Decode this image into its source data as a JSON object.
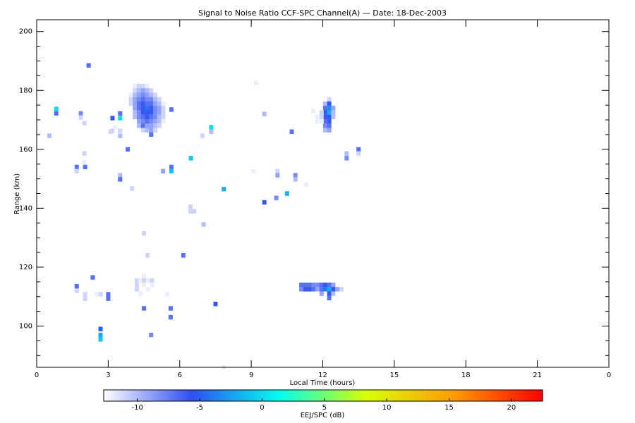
{
  "chart_data": {
    "type": "heatmap",
    "title": "Signal to Noise Ratio CCF-SPC Channel(A) — Date: 18-Dec-2003",
    "x_label": "Local Time (hours)",
    "y_label": "Range (km)",
    "xlim": [
      0,
      24
    ],
    "ylim": [
      86,
      204
    ],
    "xticks": [
      0,
      3,
      6,
      9,
      12,
      15,
      18,
      21,
      {
        "value": 24,
        "label": "0"
      }
    ],
    "yticks": [
      100,
      120,
      140,
      160,
      180,
      200
    ],
    "yminorticks": [
      90,
      95,
      105,
      110,
      115,
      125,
      130,
      135,
      145,
      150,
      155,
      165,
      170,
      175,
      185,
      190,
      195
    ],
    "colorscale": [
      "#ffffff",
      "#2f4ff0",
      "#00ffee",
      "#d8ff00",
      "#ff9a00",
      "#ff0000"
    ],
    "colorbar": {
      "label": "EEJ/SPC (dB)",
      "lim": [
        -12.7,
        22.5
      ],
      "ticks": [
        -10,
        -5,
        0,
        5,
        10,
        15,
        20
      ]
    },
    "x": [
      0.53,
      0.82,
      0.82,
      1.85,
      1.85,
      2.0,
      2.18,
      1.68,
      1.68,
      2.03,
      2.0,
      2.0,
      3.18,
      3.5,
      3.5,
      3.18,
      3.5,
      3.5,
      3.82,
      3.5,
      3.5,
      4.0,
      4.12,
      4.29,
      4.46,
      4.63,
      4.12,
      4.29,
      4.46,
      4.63,
      4.8,
      3.95,
      4.12,
      4.29,
      4.46,
      4.63,
      4.8,
      4.97,
      3.95,
      4.12,
      4.29,
      4.46,
      4.63,
      4.8,
      4.97,
      5.14,
      3.95,
      4.12,
      4.29,
      4.46,
      4.63,
      4.8,
      4.97,
      5.14,
      5.31,
      4.12,
      4.29,
      4.46,
      4.63,
      4.8,
      4.97,
      5.14,
      5.31,
      4.12,
      4.29,
      4.46,
      4.63,
      4.8,
      4.97,
      5.14,
      5.31,
      4.12,
      4.29,
      4.46,
      4.63,
      4.8,
      4.97,
      5.14,
      5.31,
      4.29,
      4.46,
      4.63,
      4.8,
      4.97,
      5.14,
      5.31,
      4.29,
      4.46,
      4.63,
      4.8,
      4.97,
      5.14,
      4.46,
      4.63,
      4.8,
      4.97,
      4.8,
      5.65,
      5.3,
      5.65,
      5.65,
      6.47,
      7.32,
      7.32,
      6.95,
      6.45,
      6.45,
      6.6,
      7.85,
      7.0,
      6.15,
      4.5,
      4.65,
      9.2,
      9.55,
      9.1,
      10.1,
      10.1,
      10.85,
      10.85,
      10.5,
      10.05,
      9.55,
      10.7,
      11.3,
      13.0,
      13.0,
      13.5,
      13.5,
      12.1,
      12.1,
      12.1,
      12.1,
      12.1,
      12.1,
      12.1,
      12.27,
      12.27,
      12.27,
      12.27,
      12.27,
      12.27,
      12.27,
      12.27,
      12.44,
      12.44,
      12.44,
      11.95,
      11.95,
      11.95,
      11.6,
      11.75,
      11.75,
      11.1,
      11.27,
      11.44,
      11.61,
      11.78,
      11.95,
      12.1,
      12.27,
      12.44,
      11.1,
      11.27,
      11.44,
      11.61,
      11.78,
      11.95,
      12.1,
      12.27,
      12.44,
      12.61,
      12.78,
      11.95,
      12.27,
      12.44,
      12.27,
      4.5,
      4.2,
      4.35,
      4.5,
      4.67,
      4.84,
      4.2,
      4.5,
      4.84,
      4.2,
      4.67,
      4.35,
      4.5,
      4.8,
      5.47,
      5.62,
      5.62,
      7.5,
      1.68,
      1.68,
      2.03,
      2.03,
      2.35,
      2.68,
      2.53,
      3.0,
      3.0,
      2.68,
      2.68,
      2.68,
      7.85,
      3.3,
      3.1
    ],
    "y": [
      164.6,
      173.7,
      172.2,
      172.2,
      170.8,
      168.9,
      188.5,
      154,
      152.6,
      154,
      158.6,
      155.7,
      170.6,
      172.2,
      170.6,
      166.3,
      166.3,
      164.6,
      160,
      151.2,
      149.8,
      146.7,
      181.5,
      181.5,
      181.5,
      181.5,
      180,
      180,
      180,
      180,
      180,
      178.5,
      178.5,
      178.5,
      178.5,
      178.5,
      178.5,
      178.5,
      177,
      177,
      177,
      177,
      177,
      177,
      177,
      177,
      175.5,
      175.5,
      175.5,
      175.5,
      175.5,
      175.5,
      175.5,
      175.5,
      175.5,
      174,
      174,
      174,
      174,
      174,
      174,
      174,
      174,
      172.5,
      172.5,
      172.5,
      172.5,
      172.5,
      172.5,
      172.5,
      172.5,
      171,
      171,
      171,
      171,
      171,
      171,
      171,
      171,
      169.5,
      169.5,
      169.5,
      169.5,
      169.5,
      169.5,
      169.5,
      168,
      168,
      168,
      168,
      168,
      168,
      166.5,
      166.5,
      166.5,
      166.5,
      165,
      173.5,
      152.6,
      154,
      152.6,
      157,
      167.5,
      166,
      164.6,
      140.5,
      139,
      139,
      146.5,
      134.5,
      124,
      131.5,
      124,
      182.5,
      172,
      152.6,
      152.6,
      151.2,
      151.2,
      149.8,
      145,
      143.5,
      142,
      166,
      148,
      158.6,
      157,
      160,
      158.6,
      175.5,
      174,
      172.5,
      171,
      169.5,
      168,
      166.5,
      177,
      175.5,
      174,
      172.5,
      171,
      169.5,
      168,
      166.5,
      174,
      172.5,
      171,
      172.5,
      171,
      169.5,
      173,
      171,
      169.5,
      114,
      114,
      114,
      114,
      114,
      114,
      114,
      114,
      114,
      112.5,
      112.5,
      112.5,
      112.5,
      112.5,
      112.5,
      112.5,
      112.5,
      112.5,
      112.5,
      112.5,
      111,
      111,
      111,
      109.5,
      117,
      115.5,
      115.5,
      115.5,
      115.5,
      115.5,
      114,
      114,
      114,
      112.5,
      112.5,
      111,
      106,
      97,
      110.8,
      106,
      103,
      107.5,
      113.5,
      112,
      110.8,
      109.3,
      116.5,
      110.8,
      110.8,
      110.8,
      109.3,
      99,
      97,
      95.5,
      86,
      167.5,
      166
    ],
    "values": [
      -10,
      0,
      -7,
      -8,
      -11,
      -11,
      -7,
      -7,
      -11,
      -7,
      -11,
      -12,
      -6,
      -7,
      0,
      -11,
      -11,
      -10,
      -7,
      -10,
      -7,
      -11,
      -12,
      -11,
      -11,
      -12,
      -11,
      -10,
      -9,
      -10,
      -11,
      -12,
      -10,
      -9,
      -8,
      -9,
      -10,
      -11,
      -11,
      -9,
      -8,
      -7,
      -8,
      -8,
      -10,
      -11,
      -11,
      -9,
      -7,
      -6,
      -7,
      -7,
      -9,
      -10,
      -12,
      -9,
      -7,
      -6,
      -4,
      -6,
      -8,
      -9,
      -11,
      -10,
      -8,
      -6,
      -6,
      -5,
      -8,
      -9,
      -11,
      -10,
      -8,
      -7,
      -6,
      -7,
      -8,
      -10,
      -11,
      -9,
      -8,
      -7,
      -8,
      -9,
      -10,
      -12,
      -10,
      -7,
      -9,
      -9,
      -10,
      -11,
      -11,
      -10,
      -9,
      -11,
      -7,
      -7,
      -9,
      -7,
      -1,
      -1,
      0,
      -10,
      -11,
      -11,
      -11,
      -11,
      -2,
      -10,
      -7,
      -11,
      -11,
      -12,
      -10,
      -12,
      -11,
      -9,
      -8,
      -10,
      -2,
      -8,
      -6,
      -7,
      -12,
      -10,
      -8,
      -7,
      -11,
      -10,
      -7,
      -6,
      -6,
      -7,
      -8,
      -10,
      -11,
      -6,
      -3,
      -2,
      -5,
      -6,
      -7,
      -9,
      -9,
      -10,
      -10,
      -11,
      -11,
      -12,
      -12,
      -12,
      -12,
      -7,
      -7,
      -7,
      -8,
      -8,
      -7,
      -6,
      -7,
      -9,
      -8,
      -6,
      -6,
      -7,
      -9,
      -7,
      -4,
      -2,
      -6,
      -9,
      -11,
      -9,
      -5,
      -10,
      -7,
      -12,
      -11,
      -12,
      -11,
      -12,
      -11,
      -11,
      -12,
      -12,
      -11,
      -12,
      -12,
      -7,
      -8,
      -12,
      -7,
      -7,
      -6,
      -7,
      -11,
      -11,
      -11,
      -7,
      -11,
      -12,
      -7,
      -7,
      -5,
      -2,
      -1,
      -12,
      -12,
      -11
    ]
  }
}
